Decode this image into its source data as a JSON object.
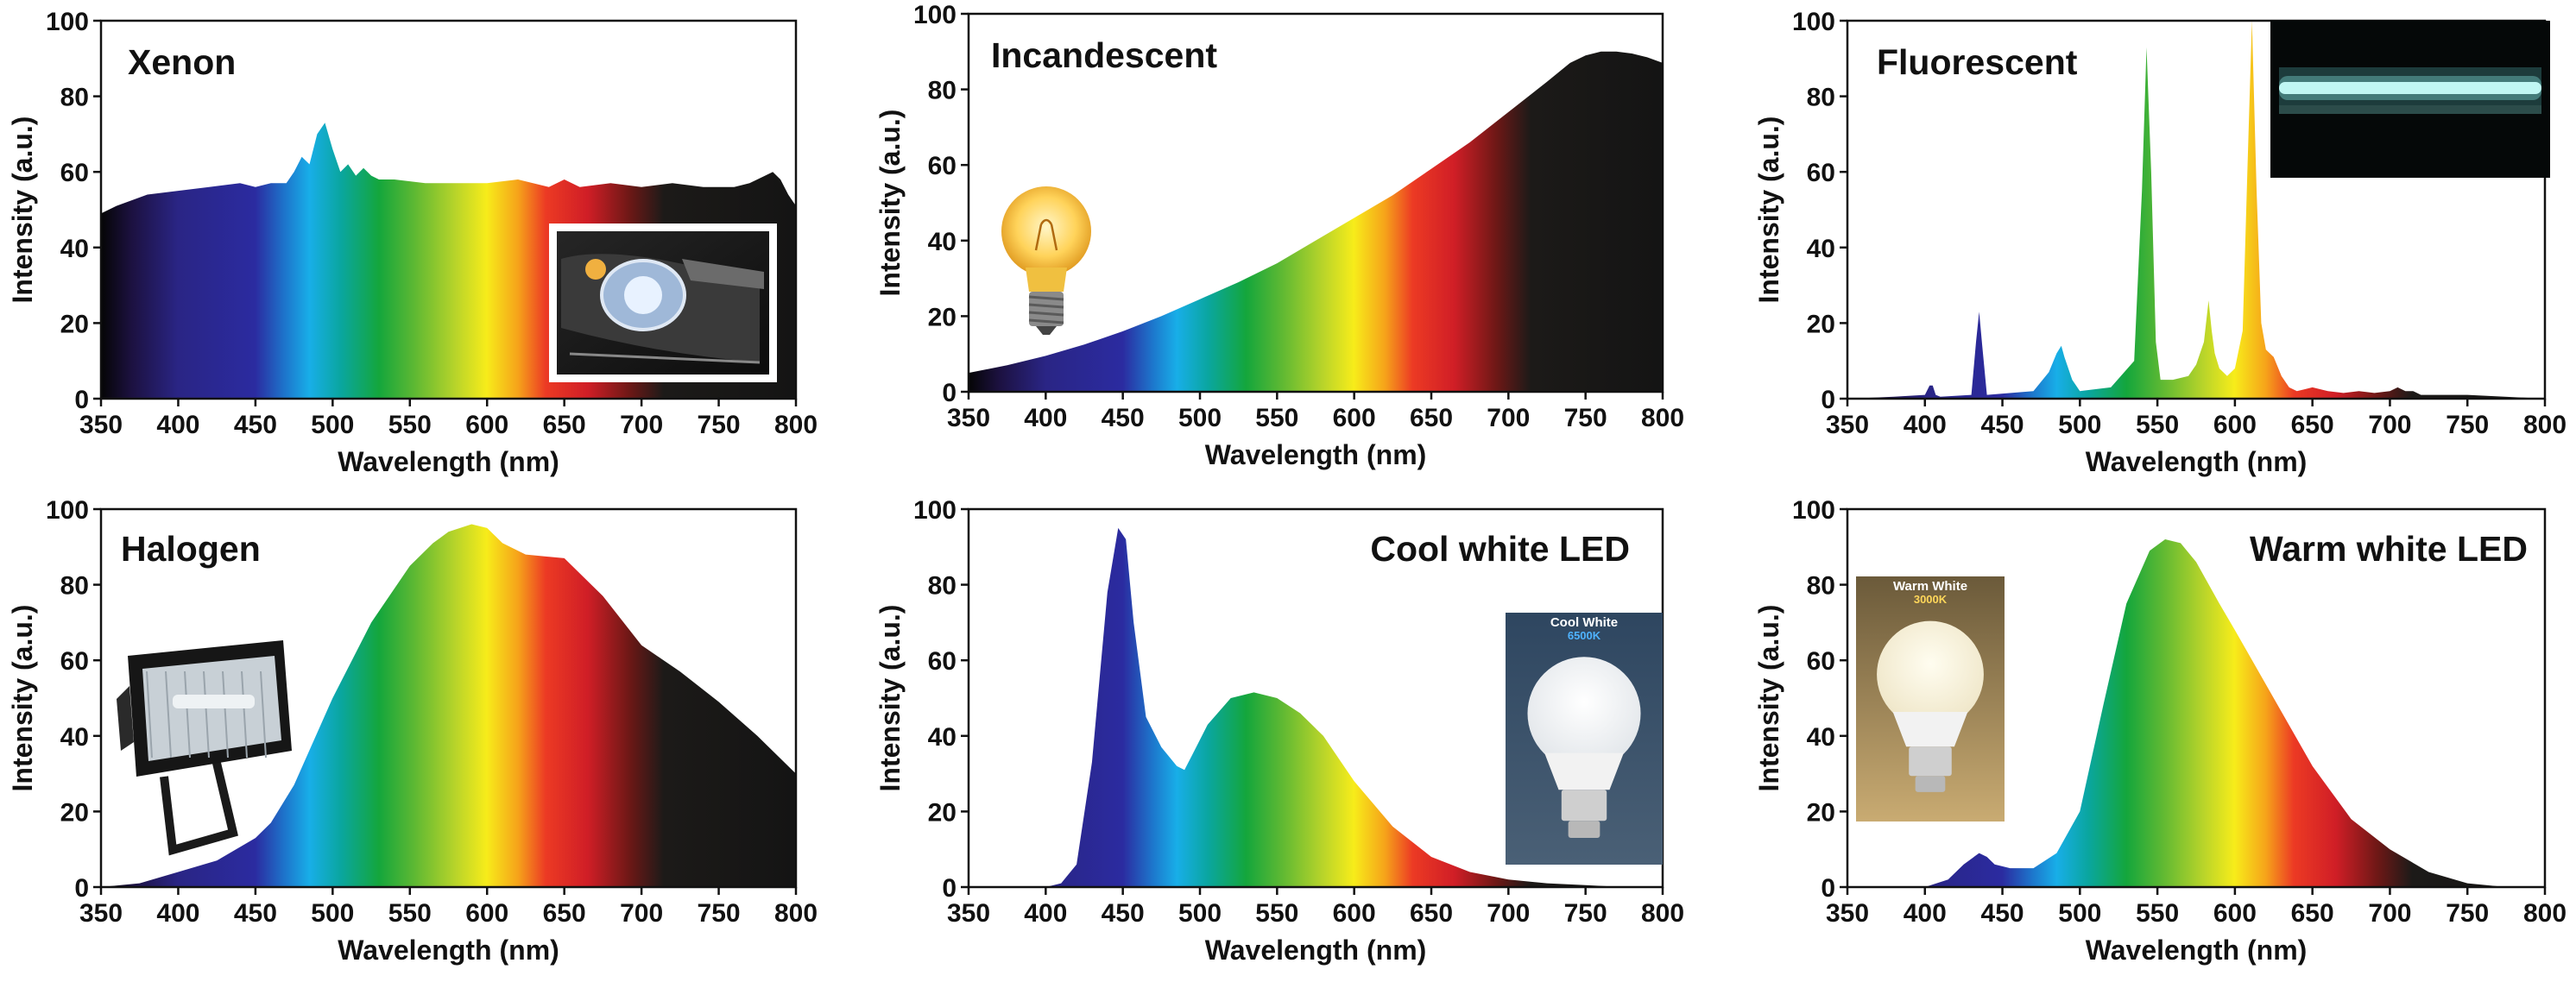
{
  "figure": {
    "panels": [
      {
        "id": "xenon",
        "title": "Xenon",
        "photo": "car-headlight-photo"
      },
      {
        "id": "incandescent",
        "title": "Incandescent",
        "photo": "light-bulb-photo"
      },
      {
        "id": "fluorescent",
        "title": "Fluorescent",
        "photo": "fluorescent-tube-photo"
      },
      {
        "id": "halogen",
        "title": "Halogen",
        "photo": "floodlight-photo"
      },
      {
        "id": "cool_led",
        "title": "Cool white LED",
        "photo": "led-bulb-photo",
        "photo_caption": "Cool White",
        "photo_subcaption": "6500K"
      },
      {
        "id": "warm_led",
        "title": "Warm white LED",
        "photo": "led-bulb-photo",
        "photo_caption": "Warm White",
        "photo_subcaption": "3000K"
      }
    ]
  },
  "colors": {
    "caption_cool": "#4fb3ff",
    "caption_warm": "#ffd75a",
    "axis": "#111111"
  },
  "chart_data": [
    {
      "type": "area",
      "title": "Xenon",
      "xlabel": "Wavelength (nm)",
      "ylabel": "Intensity (a.u.)",
      "xlim": [
        350,
        800
      ],
      "ylim": [
        0,
        100
      ],
      "xticks": [
        350,
        400,
        450,
        500,
        550,
        600,
        650,
        700,
        750,
        800
      ],
      "yticks": [
        0,
        20,
        40,
        60,
        80,
        100
      ],
      "fill": "spectrum",
      "x": [
        350,
        360,
        380,
        400,
        420,
        440,
        450,
        460,
        470,
        475,
        480,
        485,
        490,
        495,
        500,
        505,
        510,
        515,
        520,
        525,
        530,
        540,
        560,
        580,
        600,
        620,
        640,
        650,
        660,
        680,
        700,
        720,
        740,
        760,
        770,
        780,
        785,
        790,
        795,
        800
      ],
      "y": [
        49,
        51,
        54,
        55,
        56,
        57,
        56,
        57,
        57,
        60,
        64,
        62,
        70,
        73,
        66,
        60,
        62,
        59,
        61,
        59,
        58,
        58,
        57,
        57,
        57,
        58,
        56,
        58,
        56,
        57,
        56,
        57,
        56,
        56,
        57,
        59,
        60,
        58,
        54,
        51
      ]
    },
    {
      "type": "area",
      "title": "Incandescent",
      "xlabel": "Wavelength (nm)",
      "ylabel": "Intensity (a.u.)",
      "xlim": [
        350,
        800
      ],
      "ylim": [
        0,
        100
      ],
      "xticks": [
        350,
        400,
        450,
        500,
        550,
        600,
        650,
        700,
        750,
        800
      ],
      "yticks": [
        0,
        20,
        40,
        60,
        80,
        100
      ],
      "fill": "spectrum",
      "x": [
        350,
        375,
        400,
        425,
        450,
        475,
        500,
        525,
        550,
        575,
        600,
        625,
        650,
        675,
        700,
        725,
        740,
        750,
        760,
        770,
        780,
        790,
        800
      ],
      "y": [
        5,
        7,
        9.5,
        12.5,
        16,
        20,
        24.5,
        29,
        34,
        40,
        46,
        52,
        59,
        66,
        74,
        82,
        87,
        89,
        90,
        90,
        89.5,
        88.5,
        87
      ]
    },
    {
      "type": "area",
      "title": "Fluorescent",
      "xlabel": "Wavelength (nm)",
      "ylabel": "Intensity (a.u.)",
      "xlim": [
        350,
        800
      ],
      "ylim": [
        0,
        100
      ],
      "xticks": [
        350,
        400,
        450,
        500,
        550,
        600,
        650,
        700,
        750,
        800
      ],
      "yticks": [
        0,
        20,
        40,
        60,
        80,
        100
      ],
      "fill": "spectrum",
      "x": [
        350,
        380,
        400,
        403,
        405,
        407,
        410,
        430,
        433,
        435,
        437,
        440,
        470,
        480,
        485,
        488,
        490,
        495,
        500,
        520,
        535,
        540,
        543,
        546,
        549,
        552,
        560,
        570,
        575,
        580,
        583,
        585,
        587,
        590,
        595,
        600,
        605,
        608,
        611,
        614,
        617,
        620,
        625,
        630,
        635,
        640,
        650,
        660,
        670,
        680,
        690,
        700,
        705,
        710,
        715,
        720,
        750,
        800
      ],
      "y": [
        0,
        0.5,
        1,
        3.5,
        3.5,
        1,
        0.5,
        1,
        15,
        23,
        14,
        1,
        2,
        7,
        12,
        14,
        11,
        5,
        2,
        3,
        10,
        55,
        93,
        60,
        15,
        5,
        5,
        6,
        9,
        15,
        26,
        18,
        12,
        8,
        6,
        8,
        18,
        60,
        100,
        55,
        20,
        13,
        11,
        6,
        3,
        2,
        3,
        2,
        1.5,
        2,
        1.5,
        2,
        3,
        2,
        2,
        1,
        1,
        0
      ]
    },
    {
      "type": "area",
      "title": "Halogen",
      "xlabel": "Wavelength (nm)",
      "ylabel": "Intensity (a.u.)",
      "xlim": [
        350,
        800
      ],
      "ylim": [
        0,
        100
      ],
      "xticks": [
        350,
        400,
        450,
        500,
        550,
        600,
        650,
        700,
        750,
        800
      ],
      "yticks": [
        0,
        20,
        40,
        60,
        80,
        100
      ],
      "fill": "spectrum",
      "x": [
        350,
        375,
        400,
        425,
        450,
        460,
        475,
        500,
        525,
        550,
        565,
        575,
        590,
        600,
        610,
        625,
        650,
        675,
        700,
        725,
        750,
        775,
        800
      ],
      "y": [
        0,
        1,
        4,
        7,
        13,
        17,
        27,
        50,
        70,
        85,
        91,
        94,
        96,
        95,
        91,
        88,
        87,
        77,
        64,
        57,
        49,
        40,
        30
      ]
    },
    {
      "type": "area",
      "title": "Cool white LED",
      "xlabel": "Wavelength (nm)",
      "ylabel": "Intensity (a.u.)",
      "xlim": [
        350,
        800
      ],
      "ylim": [
        0,
        100
      ],
      "xticks": [
        350,
        400,
        450,
        500,
        550,
        600,
        650,
        700,
        750,
        800
      ],
      "yticks": [
        0,
        20,
        40,
        60,
        80,
        100
      ],
      "fill": "spectrum",
      "x": [
        350,
        400,
        410,
        420,
        430,
        440,
        447,
        452,
        457,
        465,
        475,
        485,
        490,
        495,
        505,
        520,
        535,
        550,
        565,
        580,
        600,
        625,
        650,
        675,
        700,
        725,
        750,
        775,
        800
      ],
      "y": [
        0,
        0,
        1,
        6,
        33,
        78,
        95,
        92,
        70,
        45,
        37,
        32,
        31,
        35,
        43,
        50,
        51.5,
        50,
        46,
        40,
        28,
        16,
        8,
        4,
        2,
        1,
        0.5,
        0,
        0
      ]
    },
    {
      "type": "area",
      "title": "Warm white LED",
      "xlabel": "Wavelength (nm)",
      "ylabel": "Intensity (a.u.)",
      "xlim": [
        350,
        800
      ],
      "ylim": [
        0,
        100
      ],
      "xticks": [
        350,
        400,
        450,
        500,
        550,
        600,
        650,
        700,
        750,
        800
      ],
      "yticks": [
        0,
        20,
        40,
        60,
        80,
        100
      ],
      "fill": "spectrum",
      "x": [
        350,
        400,
        415,
        425,
        435,
        440,
        445,
        455,
        470,
        485,
        500,
        515,
        530,
        545,
        555,
        565,
        575,
        590,
        600,
        625,
        650,
        675,
        700,
        725,
        750,
        775,
        800
      ],
      "y": [
        0,
        0,
        2,
        6,
        9,
        8,
        6,
        5,
        5,
        9,
        20,
        48,
        75,
        89,
        92,
        91,
        86,
        75,
        68,
        50,
        32,
        18,
        10,
        4,
        1,
        0,
        0
      ]
    }
  ]
}
